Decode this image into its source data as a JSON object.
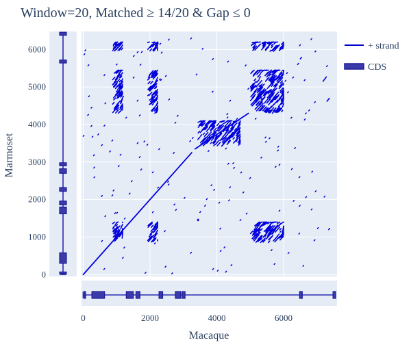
{
  "chart_data": {
    "type": "scatter",
    "title": "Window=20, Matched ≥ 14/20 & Gap ≤ 0",
    "xlabel": "Macaque",
    "ylabel": "Marmoset",
    "xlim": [
      -50,
      7600
    ],
    "ylim": [
      -50,
      6480
    ],
    "xticks": [
      0,
      2000,
      4000,
      6000
    ],
    "yticks": [
      0,
      1000,
      2000,
      3000,
      4000,
      5000,
      6000
    ],
    "grid": true,
    "legend": {
      "position": "top-right",
      "entries": [
        {
          "label": "+ strand",
          "type": "line",
          "color": "#0000cc"
        },
        {
          "label": "CDS",
          "type": "box",
          "color": "#3a3aa8"
        }
      ]
    },
    "colors": {
      "plot_bg": "#e5ecf6",
      "dots": "#0000dd",
      "track": "#2b2bb3",
      "grid": "#ffffff"
    },
    "diagonal_segments": [
      {
        "x0": 0,
        "y0": 0,
        "x1": 3250,
        "y1": 3250
      },
      {
        "x0": 3350,
        "y0": 3350,
        "x1": 4950,
        "y1": 4300
      }
    ],
    "repeat_blocks": [
      {
        "x0": 880,
        "x1": 1180,
        "y0": 4300,
        "y1": 5450
      },
      {
        "x0": 1930,
        "x1": 2230,
        "y0": 4300,
        "y1": 5450
      },
      {
        "x0": 5000,
        "x1": 6000,
        "y0": 4300,
        "y1": 5450
      },
      {
        "x0": 880,
        "x1": 1180,
        "y0": 850,
        "y1": 1400
      },
      {
        "x0": 1930,
        "x1": 2230,
        "y0": 850,
        "y1": 1400
      },
      {
        "x0": 5000,
        "x1": 6000,
        "y0": 850,
        "y1": 1400
      },
      {
        "x0": 3420,
        "x1": 4700,
        "y0": 3420,
        "y1": 4100
      },
      {
        "x0": 880,
        "x1": 1180,
        "y0": 5950,
        "y1": 6200
      },
      {
        "x0": 1930,
        "x1": 2230,
        "y0": 5950,
        "y1": 6200
      },
      {
        "x0": 5000,
        "x1": 6000,
        "y0": 5950,
        "y1": 6200
      }
    ],
    "isolated_segments": [
      {
        "x0": 6500,
        "y0": 5750,
        "x1": 6540,
        "y1": 5790
      },
      {
        "x0": 6420,
        "y0": 5600,
        "x1": 6450,
        "y1": 5630
      },
      {
        "x0": 7180,
        "y0": 5150,
        "x1": 7280,
        "y1": 5270
      },
      {
        "x0": 7300,
        "y0": 4620,
        "x1": 7370,
        "y1": 4700
      },
      {
        "x0": 7350,
        "y0": 1200,
        "x1": 7380,
        "y1": 1230
      }
    ],
    "macaque_cds": [
      {
        "start": 30,
        "end": 70
      },
      {
        "start": 260,
        "end": 640
      },
      {
        "start": 1290,
        "end": 1500
      },
      {
        "start": 1580,
        "end": 1700
      },
      {
        "start": 2270,
        "end": 2380
      },
      {
        "start": 2760,
        "end": 2920
      },
      {
        "start": 2960,
        "end": 3050
      },
      {
        "start": 6480,
        "end": 6560
      },
      {
        "start": 7480,
        "end": 7560
      }
    ],
    "marmoset_cds": [
      {
        "start": 30,
        "end": 70
      },
      {
        "start": 300,
        "end": 580
      },
      {
        "start": 1620,
        "end": 1800
      },
      {
        "start": 1860,
        "end": 1960
      },
      {
        "start": 2220,
        "end": 2320
      },
      {
        "start": 2700,
        "end": 2820
      },
      {
        "start": 2900,
        "end": 2980
      },
      {
        "start": 5640,
        "end": 5720
      },
      {
        "start": 6380,
        "end": 6460
      }
    ]
  }
}
